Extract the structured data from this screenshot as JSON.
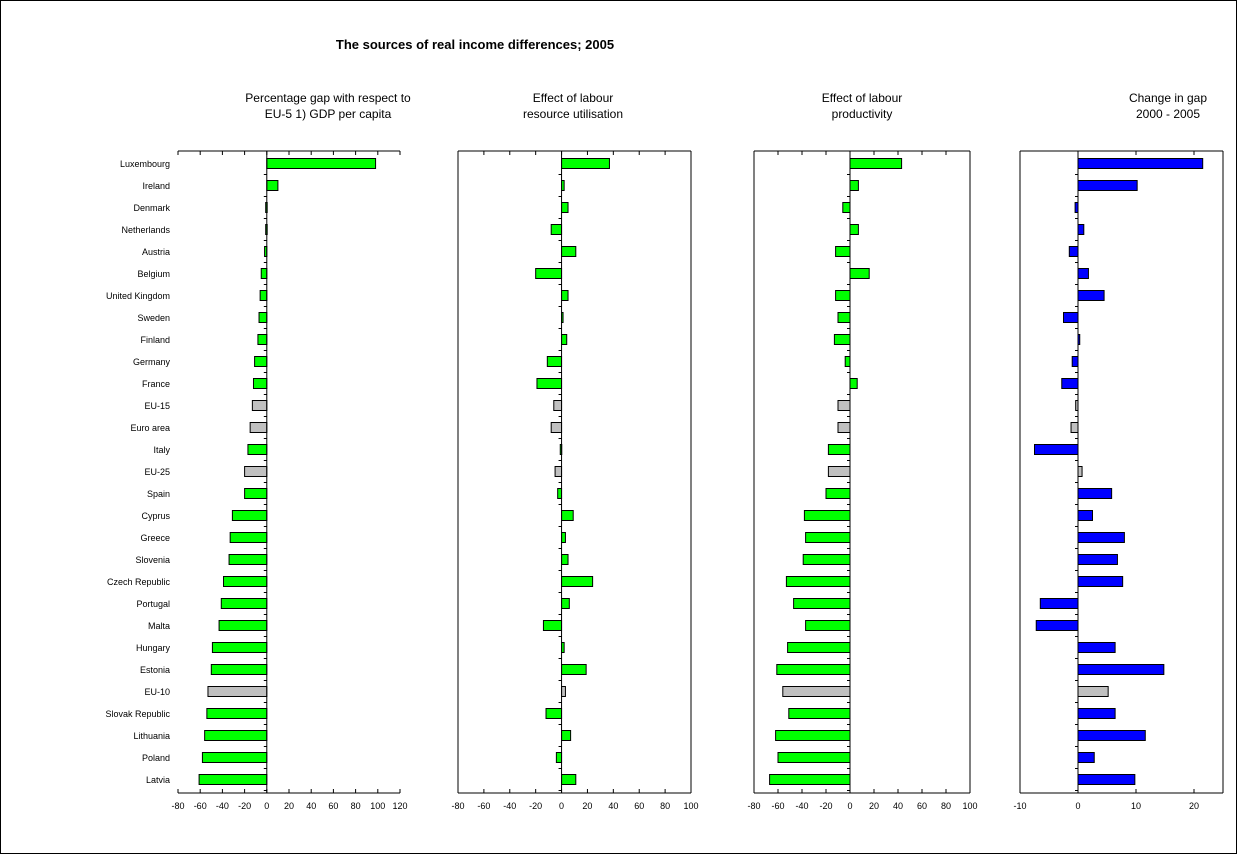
{
  "chart_data": {
    "type": "bar",
    "orientation": "horizontal",
    "title": "The sources of real income differences; 2005",
    "categories": [
      "Luxembourg",
      "Ireland",
      "Denmark",
      "Netherlands",
      "Austria",
      "Belgium",
      "United Kingdom",
      "Sweden",
      "Finland",
      "Germany",
      "France",
      "EU-15",
      "Euro area",
      "Italy",
      "EU-25",
      "Spain",
      "Cyprus",
      "Greece",
      "Slovenia",
      "Czech Republic",
      "Portugal",
      "Malta",
      "Hungary",
      "Estonia",
      "EU-10",
      "Slovak Republic",
      "Lithuania",
      "Poland",
      "Latvia"
    ],
    "aggregate_categories": [
      "EU-15",
      "Euro area",
      "EU-25",
      "EU-10"
    ],
    "colors": {
      "country_first_three": "#00ff00",
      "country_change": "#0000ff",
      "aggregate": "#c0c0c0",
      "outline": "#000000"
    },
    "grid": false,
    "panels": [
      {
        "title_lines": [
          "Percentage gap with respect to",
          "EU-5 1) GDP per capita"
        ],
        "xlim": [
          -80,
          120
        ],
        "ticks": [
          -80,
          -60,
          -40,
          -20,
          0,
          20,
          40,
          60,
          80,
          100,
          120
        ],
        "values": [
          98,
          10,
          -1,
          -1,
          -2,
          -5,
          -6,
          -7,
          -8,
          -11,
          -12,
          -13,
          -15,
          -17,
          -20,
          -20,
          -31,
          -33,
          -34,
          -39,
          -41,
          -43,
          -49,
          -50,
          -53,
          -54,
          -56,
          -58,
          -61
        ]
      },
      {
        "title_lines": [
          "Effect of labour",
          "resource utilisation"
        ],
        "xlim": [
          -80,
          100
        ],
        "ticks": [
          -80,
          -60,
          -40,
          -20,
          0,
          20,
          40,
          60,
          80,
          100
        ],
        "values": [
          37,
          2,
          5,
          -8,
          11,
          -20,
          5,
          1,
          4,
          -11,
          -19,
          -6,
          -8,
          -1,
          -5,
          -3,
          9,
          3,
          5,
          24,
          6,
          -14,
          2,
          19,
          3,
          -12,
          7,
          -4,
          11
        ]
      },
      {
        "title_lines": [
          "Effect of labour",
          "productivity"
        ],
        "xlim": [
          -80,
          100
        ],
        "ticks": [
          -80,
          -60,
          -40,
          -20,
          0,
          20,
          40,
          60,
          80,
          100
        ],
        "values": [
          43,
          7,
          -6,
          7,
          -12,
          16,
          -12,
          -10,
          -13,
          -4,
          6,
          -10,
          -10,
          -18,
          -18,
          -20,
          -38,
          -37,
          -39,
          -53,
          -47,
          -37,
          -52,
          -61,
          -56,
          -51,
          -62,
          -60,
          -67
        ]
      },
      {
        "title_lines": [
          "Change in gap",
          "2000 - 2005"
        ],
        "xlim": [
          -10,
          25
        ],
        "ticks": [
          -10,
          0,
          10,
          20
        ],
        "values": [
          21.5,
          10.2,
          -0.5,
          1.0,
          -1.5,
          1.8,
          4.5,
          -2.5,
          0.3,
          -1.0,
          -2.8,
          -0.4,
          -1.2,
          -7.5,
          0.7,
          5.8,
          2.5,
          8.0,
          6.8,
          7.7,
          -6.5,
          -7.2,
          6.4,
          14.8,
          5.2,
          6.4,
          11.6,
          2.8,
          9.8
        ]
      }
    ]
  }
}
